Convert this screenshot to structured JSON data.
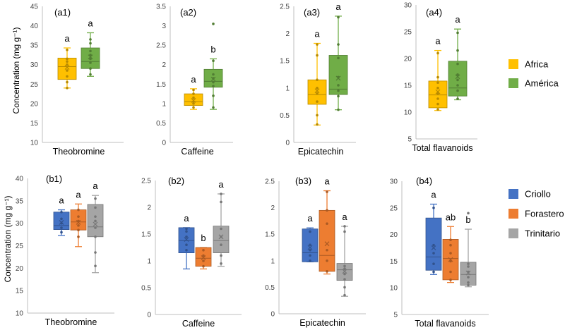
{
  "colors": {
    "Africa": "#FFC000",
    "América": "#70AD47",
    "Criollo": "#4472C4",
    "Forastero": "#ED7D31",
    "Trinitario": "#A5A5A5"
  },
  "row_ylabel": "Concentration (mg g⁻¹)",
  "legends": [
    {
      "entries": [
        "Africa",
        "América"
      ]
    },
    {
      "entries": [
        "Criollo",
        "Forastero",
        "Trinitario"
      ]
    }
  ],
  "chart_data": [
    {
      "type": "box",
      "id": "a1",
      "panel_label": "(a1)",
      "xlabel": "Theobromine",
      "ylabel": "Concentration (mg g⁻¹)",
      "ylim": [
        10,
        45
      ],
      "yticks": [
        10,
        15,
        20,
        25,
        30,
        35,
        40,
        45
      ],
      "series": [
        {
          "name": "Africa",
          "min": 24,
          "q1": 26.2,
          "median": 29.5,
          "q3": 31.7,
          "max": 34.3,
          "mean": 29.3,
          "letter": "a",
          "points": [
            24,
            25.5,
            27,
            28.5,
            30,
            30.8,
            31.5,
            33.8
          ]
        },
        {
          "name": "América",
          "min": 27,
          "q1": 29,
          "median": 30.8,
          "q3": 34.3,
          "max": 38.2,
          "mean": 32,
          "letter": "a",
          "points": [
            27.5,
            29,
            30.5,
            31.5,
            32.5,
            33.5,
            35.5,
            36.5
          ]
        }
      ]
    },
    {
      "type": "box",
      "id": "a2",
      "panel_label": "(a2)",
      "xlabel": "Caffeine",
      "ylim": [
        0,
        3.5
      ],
      "yticks": [
        0,
        0.5,
        1,
        1.5,
        2,
        2.5,
        3,
        3.5
      ],
      "series": [
        {
          "name": "Africa",
          "min": 0.85,
          "q1": 0.95,
          "median": 1.05,
          "q3": 1.25,
          "max": 1.38,
          "mean": 1.08,
          "letter": "a",
          "points": [
            0.9,
            1.0,
            1.05,
            1.15,
            1.25,
            1.35
          ]
        },
        {
          "name": "América",
          "min": 0.85,
          "q1": 1.42,
          "median": 1.57,
          "q3": 1.88,
          "max": 2.15,
          "mean": 1.63,
          "letter": "b",
          "points": [
            0.9,
            1.2,
            1.45,
            1.55,
            1.65,
            1.75,
            2.1,
            3.05
          ]
        }
      ]
    },
    {
      "type": "box",
      "id": "a3",
      "panel_label": "(a3)",
      "xlabel": "Epicatechin",
      "ylim": [
        0,
        2.5
      ],
      "yticks": [
        0,
        0.5,
        1,
        1.5,
        2,
        2.5
      ],
      "series": [
        {
          "name": "Africa",
          "min": 0.32,
          "q1": 0.7,
          "median": 0.88,
          "q3": 1.15,
          "max": 1.82,
          "mean": 0.95,
          "letter": "a",
          "points": [
            0.33,
            0.5,
            0.75,
            0.9,
            1.0,
            1.15,
            1.6,
            1.8
          ]
        },
        {
          "name": "América",
          "min": 0.6,
          "q1": 0.88,
          "median": 0.98,
          "q3": 1.6,
          "max": 2.32,
          "mean": 1.18,
          "letter": "a",
          "points": [
            0.6,
            0.85,
            0.95,
            1.05,
            1.2,
            1.55,
            1.8,
            2.3
          ]
        }
      ]
    },
    {
      "type": "box",
      "id": "a4",
      "panel_label": "(a4)",
      "xlabel": "Total flavanoids",
      "ylim": [
        5,
        30
      ],
      "yticks": [
        5,
        10,
        15,
        20,
        25,
        30
      ],
      "series": [
        {
          "name": "Africa",
          "min": 10.3,
          "q1": 10.8,
          "median": 13.2,
          "q3": 15.8,
          "max": 21.5,
          "mean": 13.8,
          "letter": "a",
          "points": [
            10.5,
            11.5,
            12.5,
            13.5,
            14.5,
            15.5,
            16.5,
            21
          ]
        },
        {
          "name": "América",
          "min": 12.3,
          "q1": 13,
          "median": 14.5,
          "q3": 19.5,
          "max": 25.5,
          "mean": 16.6,
          "letter": "a",
          "points": [
            12.5,
            14,
            15,
            16,
            17,
            19,
            21.5,
            24.8
          ]
        }
      ]
    },
    {
      "type": "box",
      "id": "b1",
      "panel_label": "(b1)",
      "xlabel": "Theobromine",
      "ylabel": "Concentration (mg g⁻¹)",
      "ylim": [
        10,
        40
      ],
      "yticks": [
        10,
        15,
        20,
        25,
        30,
        35,
        40
      ],
      "series": [
        {
          "name": "Criollo",
          "min": 27.3,
          "q1": 28.6,
          "median": 29.5,
          "q3": 32.5,
          "max": 33,
          "mean": 30.2,
          "letter": "a",
          "points": [
            28,
            29,
            30,
            31,
            32.5
          ]
        },
        {
          "name": "Forastero",
          "min": 24.8,
          "q1": 28.5,
          "median": 30.3,
          "q3": 33,
          "max": 34.3,
          "mean": 30.2,
          "letter": "a",
          "points": [
            27,
            28.5,
            29.5,
            30.5,
            31.5,
            33
          ]
        },
        {
          "name": "Trinitario",
          "min": 19,
          "q1": 27,
          "median": 29.2,
          "q3": 34.2,
          "max": 36.2,
          "mean": 29.8,
          "letter": "a",
          "points": [
            20.5,
            23.5,
            27,
            29,
            30.5,
            31.5,
            33.5,
            35.5
          ]
        }
      ]
    },
    {
      "type": "box",
      "id": "b2",
      "panel_label": "(b2)",
      "xlabel": "Caffeine",
      "ylim": [
        0,
        2.5
      ],
      "yticks": [
        0,
        0.5,
        1,
        1.5,
        2,
        2.5
      ],
      "series": [
        {
          "name": "Criollo",
          "min": 0.85,
          "q1": 1.15,
          "median": 1.38,
          "q3": 1.62,
          "max": 1.62,
          "mean": 1.4,
          "letter": "a",
          "points": [
            1.2,
            1.3,
            1.45,
            1.55,
            1.6
          ]
        },
        {
          "name": "Forastero",
          "min": 0.85,
          "q1": 0.9,
          "median": 1.05,
          "q3": 1.25,
          "max": 1.25,
          "mean": 1.06,
          "letter": "b",
          "points": [
            0.9,
            1.0,
            1.1,
            1.2
          ]
        },
        {
          "name": "Trinitario",
          "min": 0.9,
          "q1": 1.15,
          "median": 1.38,
          "q3": 1.65,
          "max": 2.25,
          "mean": 1.45,
          "letter": "a",
          "points": [
            0.95,
            1.1,
            1.3,
            1.45,
            1.6,
            2.1,
            2.25
          ]
        }
      ]
    },
    {
      "type": "box",
      "id": "b3",
      "panel_label": "(b3)",
      "xlabel": "Epicatechin",
      "ylim": [
        0,
        2.5
      ],
      "yticks": [
        0,
        0.5,
        1,
        1.5,
        2,
        2.5
      ],
      "series": [
        {
          "name": "Criollo",
          "min": 0.98,
          "q1": 0.98,
          "median": 1.15,
          "q3": 1.6,
          "max": 1.62,
          "mean": 1.25,
          "letter": "a",
          "points": [
            1.0,
            1.1,
            1.2,
            1.3,
            1.55
          ]
        },
        {
          "name": "Forastero",
          "min": 0.75,
          "q1": 0.8,
          "median": 1.1,
          "q3": 1.95,
          "max": 2.32,
          "mean": 1.32,
          "letter": "a",
          "points": [
            0.8,
            1.0,
            1.2,
            1.7,
            1.95,
            2.3
          ]
        },
        {
          "name": "Trinitario",
          "min": 0.33,
          "q1": 0.63,
          "median": 0.83,
          "q3": 0.95,
          "max": 1.65,
          "mean": 0.8,
          "letter": "a",
          "points": [
            0.35,
            0.5,
            0.65,
            0.75,
            0.85,
            0.9,
            1.55,
            1.65
          ]
        }
      ]
    },
    {
      "type": "box",
      "id": "b4",
      "panel_label": "(b4)",
      "xlabel": "Total flavanoids",
      "ylim": [
        5,
        30
      ],
      "yticks": [
        5,
        10,
        15,
        20,
        25,
        30
      ],
      "series": [
        {
          "name": "Criollo",
          "min": 12.5,
          "q1": 13.3,
          "median": 15.8,
          "q3": 23.1,
          "max": 25.7,
          "mean": 17.5,
          "letter": "a",
          "points": [
            13,
            14.5,
            16.5,
            18,
            25
          ]
        },
        {
          "name": "Forastero",
          "min": 11,
          "q1": 11.5,
          "median": 15.5,
          "q3": 19.1,
          "max": 21.5,
          "mean": 15.3,
          "letter": "ab",
          "points": [
            11.5,
            13,
            15,
            16.5,
            18,
            19
          ]
        },
        {
          "name": "Trinitario",
          "min": 10.2,
          "q1": 10.5,
          "median": 12.5,
          "q3": 14.8,
          "max": 21,
          "mean": 12.8,
          "letter": "b",
          "points": [
            10.5,
            11,
            12,
            13,
            14,
            14.5,
            24
          ]
        }
      ]
    }
  ]
}
